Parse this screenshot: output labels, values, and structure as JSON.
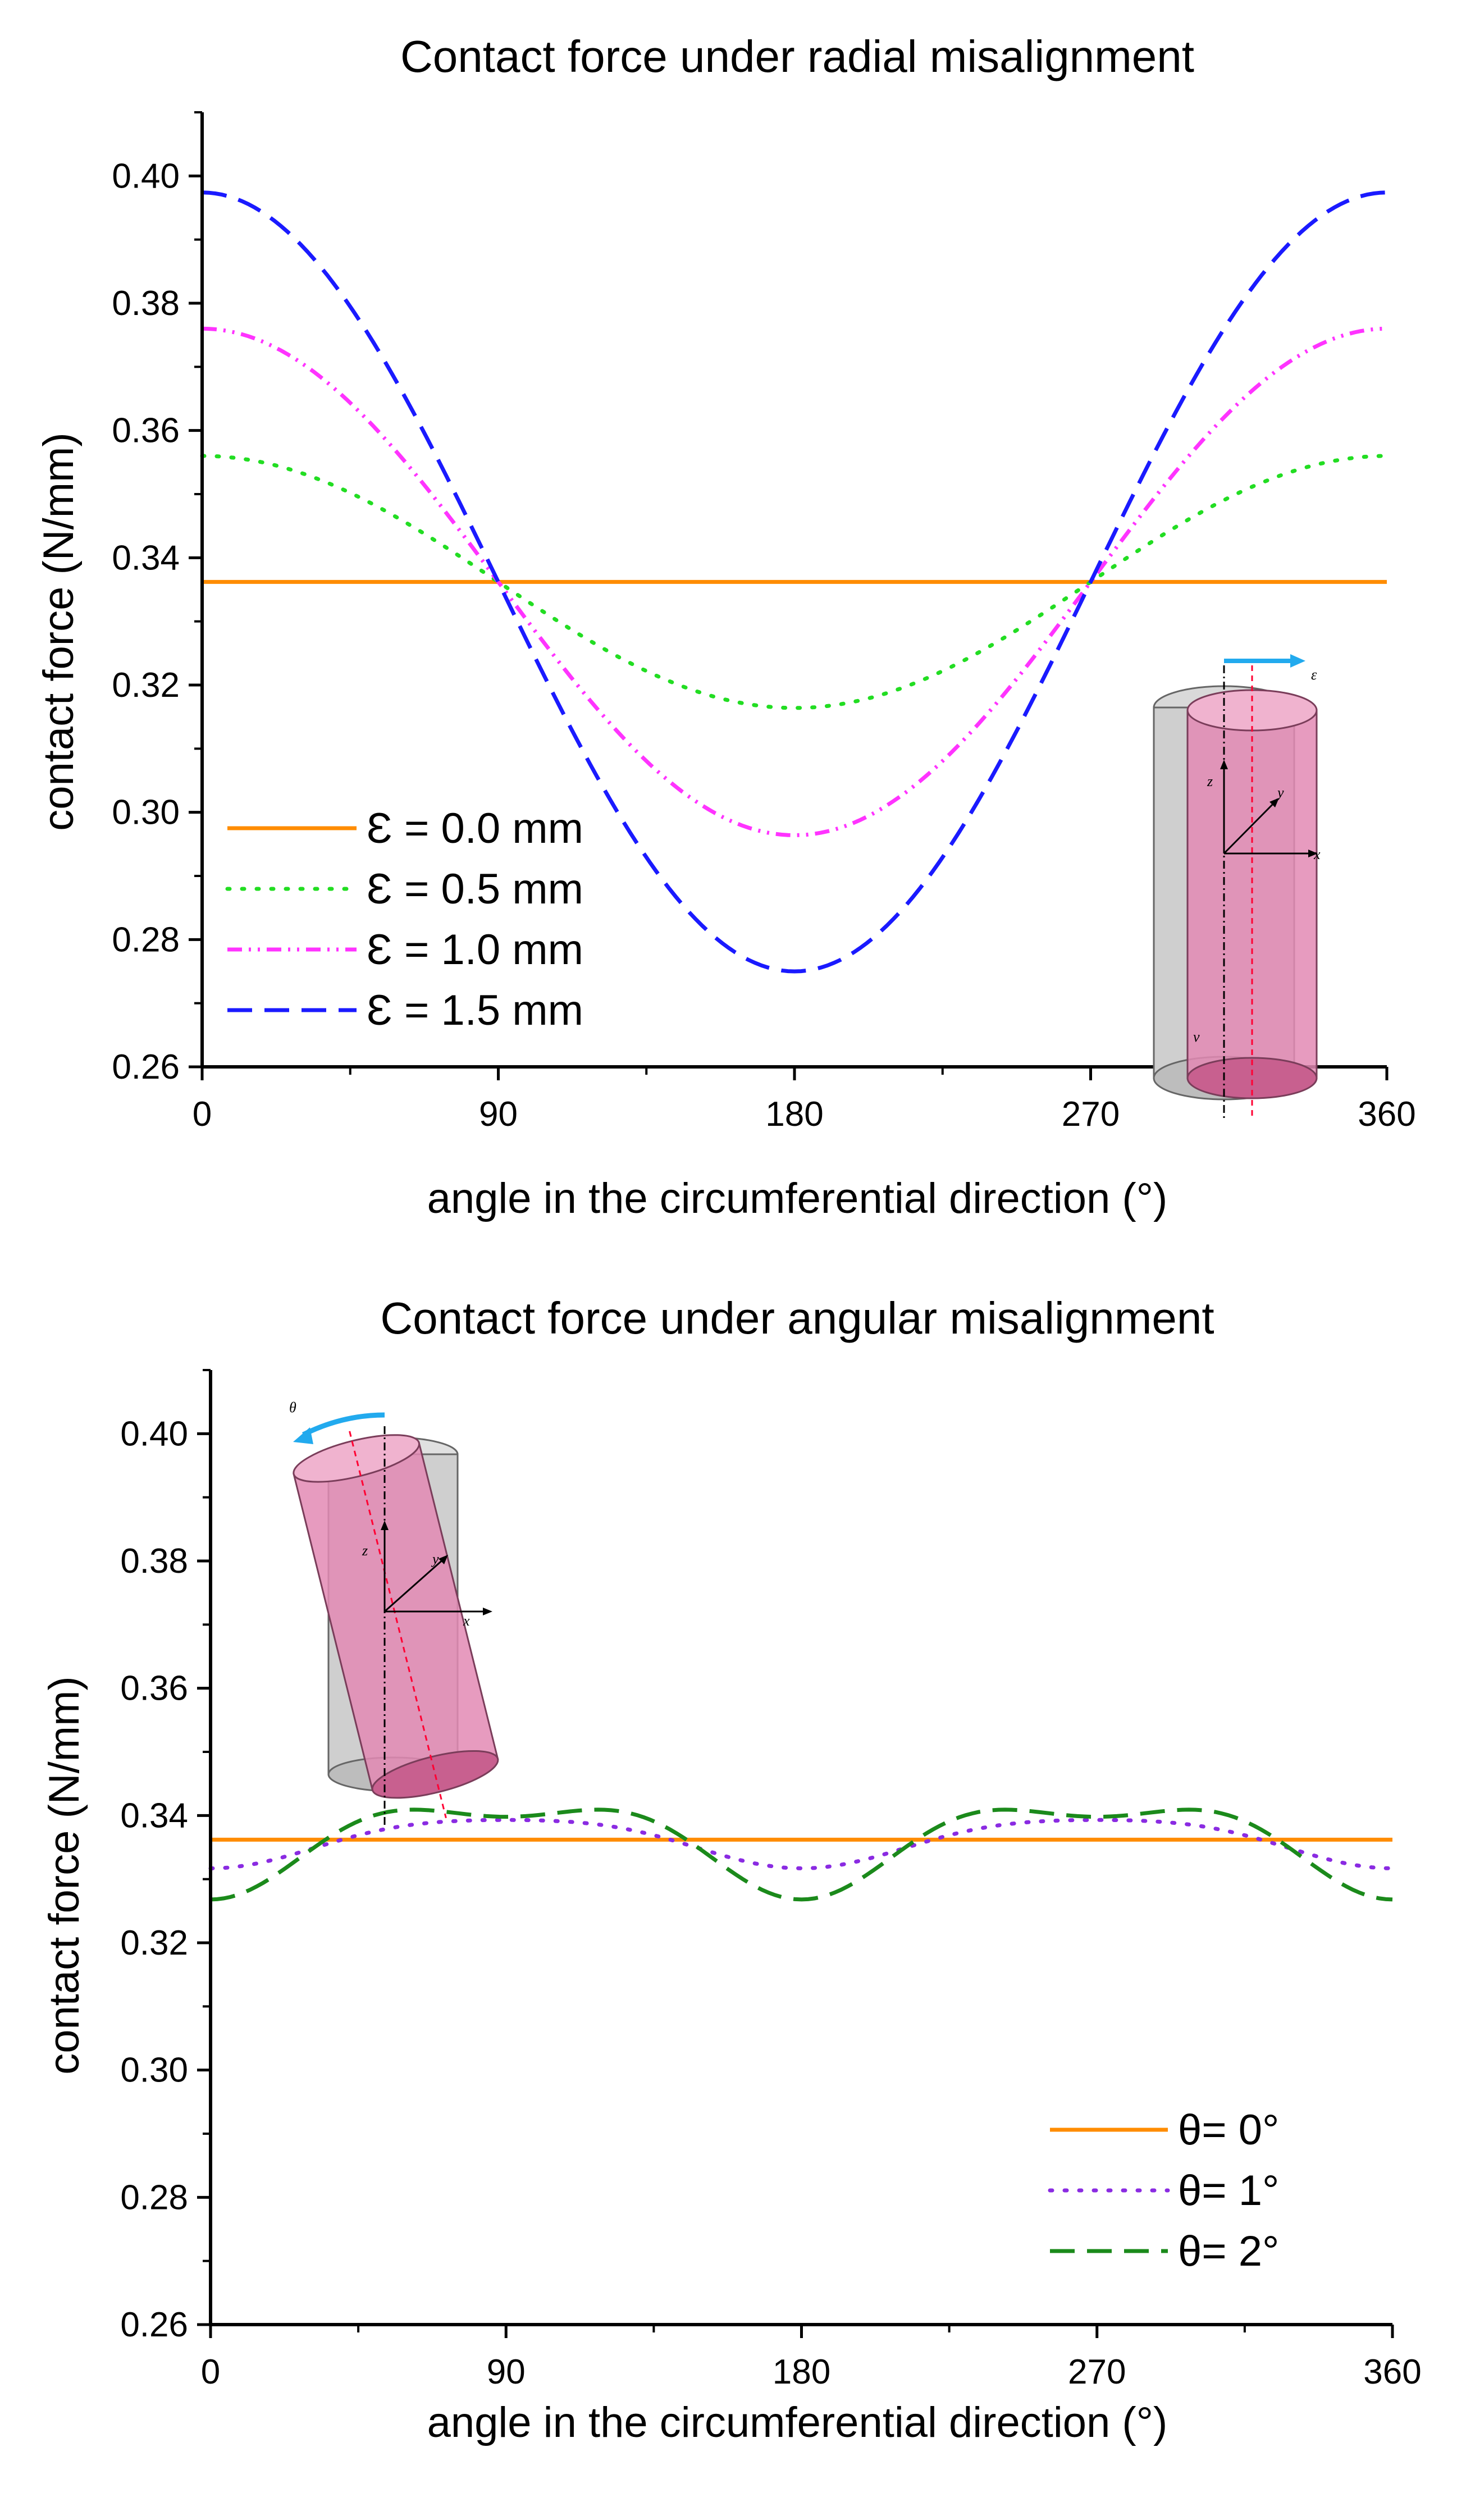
{
  "chart_data": [
    {
      "type": "line",
      "title": "Contact force under radial misalignment",
      "xlabel": "angle in the circumferential direction  (°)",
      "ylabel": "contact force (N/mm)",
      "xlim": [
        0,
        360
      ],
      "ylim": [
        0.26,
        0.41
      ],
      "xticks": [
        0,
        90,
        180,
        270,
        360
      ],
      "yticks": [
        0.26,
        0.28,
        0.3,
        0.32,
        0.34,
        0.36,
        0.38,
        0.4
      ],
      "ytick_labels": [
        "0.26",
        "0.28",
        "0.30",
        "0.32",
        "0.34",
        "0.36",
        "0.38",
        "0.40"
      ],
      "grid": false,
      "legend_position": "bottom-left",
      "series": [
        {
          "name": "ε = 0.0 mm",
          "label": "Ɛ = 0.0 mm",
          "color": "#FF8C00",
          "dash": "solid",
          "baseline": 0.3362,
          "amplitude": 0.0
        },
        {
          "name": "ε = 0.5 mm",
          "label": "Ɛ = 0.5 mm",
          "color": "#22DD22",
          "dash": "dot",
          "baseline": 0.3362,
          "amplitude": 0.0198
        },
        {
          "name": "ε = 1.0 mm",
          "label": "Ɛ = 1.0 mm",
          "color": "#FF33FF",
          "dash": "dashdotdot",
          "baseline": 0.3362,
          "amplitude": 0.0398
        },
        {
          "name": "ε = 1.5 mm",
          "label": "Ɛ = 1.5 mm",
          "color": "#1A1AFF",
          "dash": "dash",
          "baseline": 0.3362,
          "amplitude": 0.0612
        }
      ],
      "inset": {
        "description": "eccentric cylinder diagram",
        "labels": [
          "ε",
          "x",
          "y",
          "z",
          "v"
        ]
      }
    },
    {
      "type": "line",
      "title": "Contact force under angular misalignment",
      "xlabel": "angle in the circumferential direction  (°)",
      "ylabel": "contact force (N/mm)",
      "xlim": [
        0,
        360
      ],
      "ylim": [
        0.26,
        0.41
      ],
      "xticks": [
        0,
        90,
        180,
        270,
        360
      ],
      "yticks": [
        0.26,
        0.28,
        0.3,
        0.32,
        0.34,
        0.36,
        0.38,
        0.4
      ],
      "ytick_labels": [
        "0.26",
        "0.28",
        "0.30",
        "0.32",
        "0.34",
        "0.36",
        "0.38",
        "0.40"
      ],
      "grid": false,
      "legend_position": "bottom-right",
      "series": [
        {
          "name": "θ= 0°",
          "label": "θ= 0°",
          "color": "#FF8C00",
          "dash": "solid",
          "baseline": 0.3362,
          "a2": 0.0,
          "a4": 0.0
        },
        {
          "name": "θ= 1°",
          "label": "θ= 1°",
          "color": "#8A2BE2",
          "dash": "dot",
          "baseline": 0.3362,
          "a2": -0.0038,
          "a4": -0.0007
        },
        {
          "name": "θ= 2°",
          "label": "θ= 2°",
          "color": "#1B8A1B",
          "dash": "dash",
          "baseline": 0.3362,
          "a2": -0.0065,
          "a4": -0.0029
        }
      ],
      "inset": {
        "description": "tilted cylinder diagram",
        "labels": [
          "θ",
          "x",
          "y",
          "z"
        ]
      }
    }
  ]
}
